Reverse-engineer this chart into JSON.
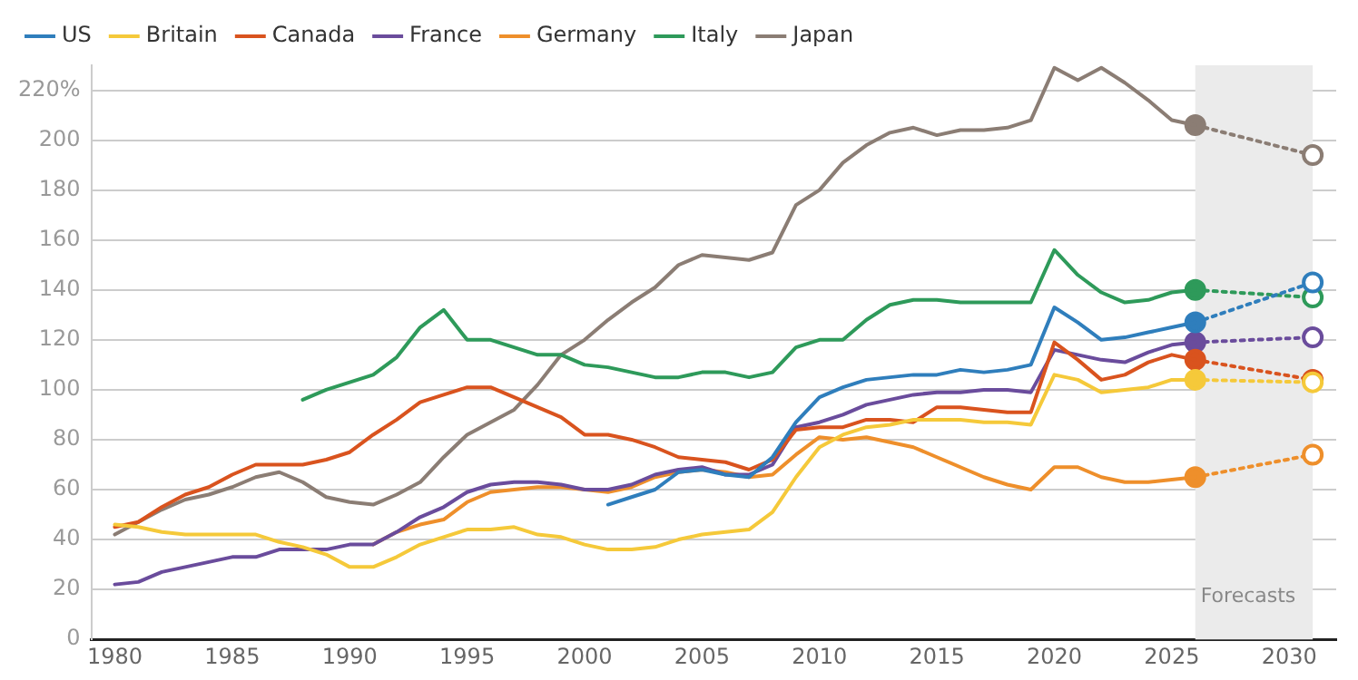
{
  "chart_data": {
    "type": "line",
    "legend": "top left",
    "grid": "y",
    "xlim": [
      1979,
      2032
    ],
    "xticks": [
      1980,
      1985,
      1990,
      1995,
      2000,
      2005,
      2010,
      2015,
      2020,
      2025,
      2030
    ],
    "ylim": [
      0,
      230
    ],
    "yticks": [
      0,
      20,
      40,
      60,
      80,
      100,
      120,
      140,
      160,
      180,
      200,
      {
        "value": 220,
        "label": "220%"
      }
    ],
    "bands": [
      {
        "axis": "x",
        "from": 2026,
        "to": 2031,
        "label": "Forecasts",
        "color": "#ebebeb"
      }
    ],
    "series": [
      {
        "name": "US",
        "color": "#2f7ebc",
        "marker": "none",
        "line_style": "solid",
        "x": [
          2001,
          2002,
          2003,
          2004,
          2005,
          2006,
          2007,
          2008,
          2009,
          2010,
          2011,
          2012,
          2013,
          2014,
          2015,
          2016,
          2017,
          2018,
          2019,
          2020,
          2021,
          2022,
          2023,
          2024,
          2025,
          2026
        ],
        "values": [
          54,
          57,
          60,
          67,
          68,
          66,
          65,
          73,
          87,
          97,
          101,
          104,
          105,
          106,
          106,
          108,
          107,
          108,
          110,
          133,
          127,
          120,
          121,
          123,
          125,
          127
        ]
      },
      {
        "name": "Britain",
        "color": "#f5c93a",
        "marker": "none",
        "line_style": "solid",
        "x": [
          1980,
          1981,
          1982,
          1983,
          1984,
          1985,
          1986,
          1987,
          1988,
          1989,
          1990,
          1991,
          1992,
          1993,
          1994,
          1995,
          1996,
          1997,
          1998,
          1999,
          2000,
          2001,
          2002,
          2003,
          2004,
          2005,
          2006,
          2007,
          2008,
          2009,
          2010,
          2011,
          2012,
          2013,
          2014,
          2015,
          2016,
          2017,
          2018,
          2019,
          2020,
          2021,
          2022,
          2023,
          2024,
          2025,
          2026
        ],
        "values": [
          46,
          45,
          43,
          42,
          42,
          42,
          42,
          39,
          37,
          34,
          29,
          29,
          33,
          38,
          41,
          44,
          44,
          45,
          42,
          41,
          38,
          36,
          36,
          37,
          40,
          42,
          43,
          44,
          51,
          65,
          77,
          82,
          85,
          86,
          88,
          88,
          88,
          87,
          87,
          86,
          106,
          104,
          99,
          100,
          101,
          104,
          104
        ]
      },
      {
        "name": "Canada",
        "color": "#d9531e",
        "marker": "none",
        "line_style": "solid",
        "x": [
          1980,
          1981,
          1982,
          1983,
          1984,
          1985,
          1986,
          1987,
          1988,
          1989,
          1990,
          1991,
          1992,
          1993,
          1994,
          1995,
          1996,
          1997,
          1998,
          1999,
          2000,
          2001,
          2002,
          2003,
          2004,
          2005,
          2006,
          2007,
          2008,
          2009,
          2010,
          2011,
          2012,
          2013,
          2014,
          2015,
          2016,
          2017,
          2018,
          2019,
          2020,
          2021,
          2022,
          2023,
          2024,
          2025,
          2026
        ],
        "values": [
          45,
          47,
          53,
          58,
          61,
          66,
          70,
          70,
          70,
          72,
          75,
          82,
          88,
          95,
          98,
          101,
          101,
          97,
          93,
          89,
          82,
          82,
          80,
          77,
          73,
          72,
          71,
          68,
          72,
          84,
          85,
          85,
          88,
          88,
          87,
          93,
          93,
          92,
          91,
          91,
          119,
          112,
          104,
          106,
          111,
          114,
          112
        ]
      },
      {
        "name": "France",
        "color": "#6a4c9c",
        "marker": "none",
        "line_style": "solid",
        "x": [
          1980,
          1981,
          1982,
          1983,
          1984,
          1985,
          1986,
          1987,
          1988,
          1989,
          1990,
          1991,
          1992,
          1993,
          1994,
          1995,
          1996,
          1997,
          1998,
          1999,
          2000,
          2001,
          2002,
          2003,
          2004,
          2005,
          2006,
          2007,
          2008,
          2009,
          2010,
          2011,
          2012,
          2013,
          2014,
          2015,
          2016,
          2017,
          2018,
          2019,
          2020,
          2021,
          2022,
          2023,
          2024,
          2025,
          2026
        ],
        "values": [
          22,
          23,
          27,
          29,
          31,
          33,
          33,
          36,
          36,
          36,
          38,
          38,
          43,
          49,
          53,
          59,
          62,
          63,
          63,
          62,
          60,
          60,
          62,
          66,
          68,
          69,
          66,
          66,
          70,
          85,
          87,
          90,
          94,
          96,
          98,
          99,
          99,
          100,
          100,
          99,
          116,
          114,
          112,
          111,
          115,
          118,
          119
        ]
      },
      {
        "name": "Germany",
        "color": "#ee8f2b",
        "marker": "none",
        "line_style": "solid",
        "x": [
          1991,
          1992,
          1993,
          1994,
          1995,
          1996,
          1997,
          1998,
          1999,
          2000,
          2001,
          2002,
          2003,
          2004,
          2005,
          2006,
          2007,
          2008,
          2009,
          2010,
          2011,
          2012,
          2013,
          2014,
          2015,
          2016,
          2017,
          2018,
          2019,
          2020,
          2021,
          2022,
          2023,
          2024,
          2025,
          2026
        ],
        "values": [
          38,
          43,
          46,
          48,
          55,
          59,
          60,
          61,
          61,
          60,
          59,
          61,
          65,
          67,
          68,
          67,
          65,
          66,
          74,
          81,
          80,
          81,
          79,
          77,
          73,
          69,
          65,
          62,
          60,
          69,
          69,
          65,
          63,
          63,
          64,
          65
        ]
      },
      {
        "name": "Italy",
        "color": "#2e9a5a",
        "marker": "none",
        "line_style": "solid",
        "x": [
          1988,
          1989,
          1990,
          1991,
          1992,
          1993,
          1994,
          1995,
          1996,
          1997,
          1998,
          1999,
          2000,
          2001,
          2002,
          2003,
          2004,
          2005,
          2006,
          2007,
          2008,
          2009,
          2010,
          2011,
          2012,
          2013,
          2014,
          2015,
          2016,
          2017,
          2018,
          2019,
          2020,
          2021,
          2022,
          2023,
          2024,
          2025,
          2026
        ],
        "values": [
          96,
          100,
          103,
          106,
          113,
          125,
          132,
          120,
          120,
          117,
          114,
          114,
          110,
          109,
          107,
          105,
          105,
          107,
          107,
          105,
          107,
          117,
          120,
          120,
          128,
          134,
          136,
          136,
          135,
          135,
          135,
          135,
          156,
          146,
          139,
          135,
          136,
          139,
          140
        ]
      },
      {
        "name": "Japan",
        "color": "#8b7d74",
        "marker": "none",
        "line_style": "solid",
        "x": [
          1980,
          1981,
          1982,
          1983,
          1984,
          1985,
          1986,
          1987,
          1988,
          1989,
          1990,
          1991,
          1992,
          1993,
          1994,
          1995,
          1996,
          1997,
          1998,
          1999,
          2000,
          2001,
          2002,
          2003,
          2004,
          2005,
          2006,
          2007,
          2008,
          2009,
          2010,
          2011,
          2012,
          2013,
          2014,
          2015,
          2016,
          2017,
          2018,
          2019,
          2020,
          2021,
          2022,
          2023,
          2024,
          2025,
          2026
        ],
        "values": [
          42,
          47,
          52,
          56,
          58,
          61,
          65,
          67,
          63,
          57,
          55,
          54,
          58,
          63,
          73,
          82,
          87,
          92,
          102,
          114,
          120,
          128,
          135,
          141,
          150,
          154,
          153,
          152,
          155,
          174,
          180,
          191,
          198,
          203,
          205,
          202,
          204,
          204,
          205,
          208,
          229,
          224,
          229,
          223,
          216,
          208,
          206
        ]
      },
      {
        "color": "#2f7ebc",
        "marker": "circle",
        "line_style": "dotted",
        "x": [
          2026,
          2031
        ],
        "values": [
          127,
          143
        ]
      },
      {
        "color": "#f5c93a",
        "marker": "circle",
        "line_style": "dotted",
        "x": [
          2026,
          2031
        ],
        "values": [
          104,
          103
        ]
      },
      {
        "color": "#d9531e",
        "marker": "circle",
        "line_style": "dotted",
        "x": [
          2026,
          2031
        ],
        "values": [
          112,
          104
        ]
      },
      {
        "color": "#6a4c9c",
        "marker": "circle",
        "line_style": "dotted",
        "x": [
          2026,
          2031
        ],
        "values": [
          119,
          121
        ]
      },
      {
        "color": "#ee8f2b",
        "marker": "circle",
        "line_style": "dotted",
        "x": [
          2026,
          2031
        ],
        "values": [
          65,
          74
        ]
      },
      {
        "color": "#2e9a5a",
        "marker": "circle",
        "line_style": "dotted",
        "x": [
          2026,
          2031
        ],
        "values": [
          140,
          137
        ]
      },
      {
        "color": "#8b7d74",
        "marker": "circle",
        "line_style": "dotted",
        "x": [
          2026,
          2031
        ],
        "values": [
          206,
          194
        ]
      }
    ]
  }
}
